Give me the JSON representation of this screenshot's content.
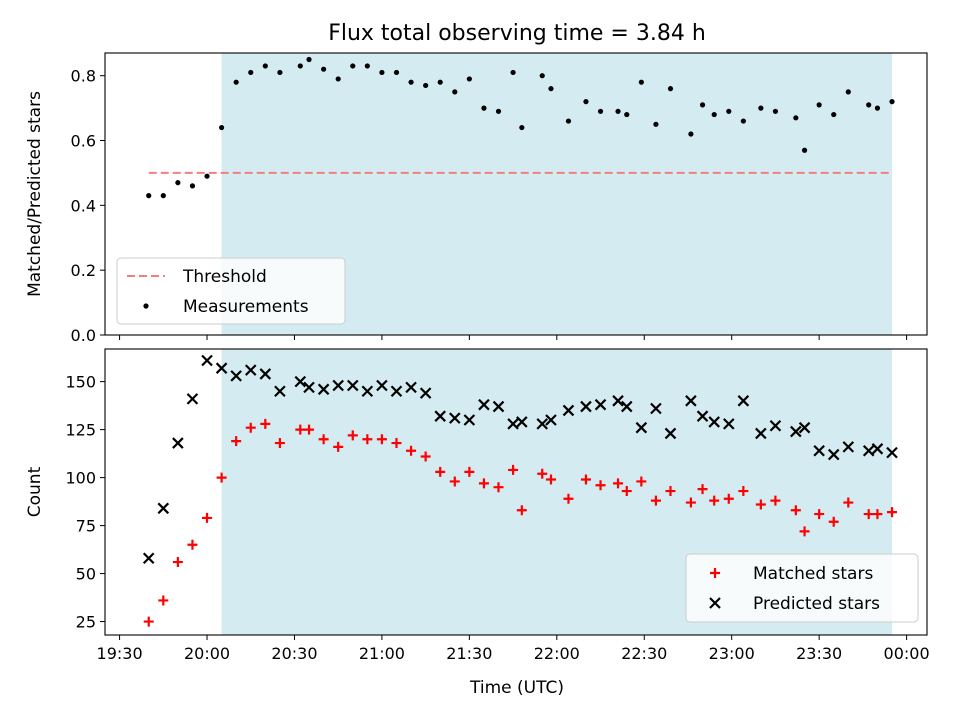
{
  "title": "Flux total observing time = 3.84 h",
  "chart_data": [
    {
      "type": "scatter",
      "ylabel": "Matched/Predicted stars",
      "ylim": [
        0,
        0.87
      ],
      "yticks": [
        0.0,
        0.2,
        0.4,
        0.6,
        0.8
      ],
      "ytick_labels": [
        "0.0",
        "0.2",
        "0.4",
        "0.6",
        "0.8"
      ],
      "xlim": [
        "19:25",
        "00:07"
      ],
      "shaded_region": {
        "from": "20:05",
        "to": "23:55",
        "color": "#d4ebf1"
      },
      "threshold": {
        "name": "Threshold",
        "value": 0.5,
        "from": "19:40",
        "to": "23:55",
        "color": "#f08080"
      },
      "series": [
        {
          "name": "Measurements",
          "color": "#000000",
          "x": [
            "19:40",
            "19:45",
            "19:50",
            "19:55",
            "20:00",
            "20:05",
            "20:10",
            "20:15",
            "20:20",
            "20:25",
            "20:32",
            "20:35",
            "20:40",
            "20:45",
            "20:50",
            "20:55",
            "21:00",
            "21:05",
            "21:10",
            "21:15",
            "21:20",
            "21:25",
            "21:30",
            "21:35",
            "21:40",
            "21:45",
            "21:48",
            "21:55",
            "21:58",
            "22:04",
            "22:10",
            "22:15",
            "22:21",
            "22:24",
            "22:29",
            "22:34",
            "22:39",
            "22:46",
            "22:50",
            "22:54",
            "22:59",
            "23:04",
            "23:10",
            "23:15",
            "23:22",
            "23:25",
            "23:30",
            "23:35",
            "23:40",
            "23:47",
            "23:50",
            "23:55"
          ],
          "y": [
            0.43,
            0.43,
            0.47,
            0.46,
            0.49,
            0.64,
            0.78,
            0.81,
            0.83,
            0.81,
            0.83,
            0.85,
            0.82,
            0.79,
            0.83,
            0.83,
            0.81,
            0.81,
            0.78,
            0.77,
            0.78,
            0.75,
            0.79,
            0.7,
            0.69,
            0.81,
            0.64,
            0.8,
            0.76,
            0.66,
            0.72,
            0.69,
            0.69,
            0.68,
            0.78,
            0.65,
            0.76,
            0.62,
            0.71,
            0.68,
            0.69,
            0.66,
            0.7,
            0.69,
            0.67,
            0.57,
            0.71,
            0.68,
            0.75,
            0.71,
            0.7,
            0.72
          ]
        }
      ],
      "legend": {
        "placement": "lower-left",
        "entries": [
          "Threshold",
          "Measurements"
        ]
      }
    },
    {
      "type": "scatter",
      "xlabel": "Time (UTC)",
      "ylabel": "Count",
      "ylim": [
        18,
        167
      ],
      "yticks": [
        25,
        50,
        75,
        100,
        125,
        150
      ],
      "ytick_labels": [
        "25",
        "50",
        "75",
        "100",
        "125",
        "150"
      ],
      "xlim": [
        "19:25",
        "00:07"
      ],
      "xticks": [
        "19:30",
        "20:00",
        "20:30",
        "21:00",
        "21:30",
        "22:00",
        "22:30",
        "23:00",
        "23:30",
        "00:00"
      ],
      "xtick_labels": [
        "19:30",
        "20:00",
        "20:30",
        "21:00",
        "21:30",
        "22:00",
        "22:30",
        "23:00",
        "23:30",
        "00:00"
      ],
      "shaded_region": {
        "from": "20:05",
        "to": "23:55",
        "color": "#d4ebf1"
      },
      "series": [
        {
          "name": "Matched stars",
          "marker": "+",
          "color": "#ff0000",
          "x": [
            "19:40",
            "19:45",
            "19:50",
            "19:55",
            "20:00",
            "20:05",
            "20:10",
            "20:15",
            "20:20",
            "20:25",
            "20:32",
            "20:35",
            "20:40",
            "20:45",
            "20:50",
            "20:55",
            "21:00",
            "21:05",
            "21:10",
            "21:15",
            "21:20",
            "21:25",
            "21:30",
            "21:35",
            "21:40",
            "21:45",
            "21:48",
            "21:55",
            "21:58",
            "22:04",
            "22:10",
            "22:15",
            "22:21",
            "22:24",
            "22:29",
            "22:34",
            "22:39",
            "22:46",
            "22:50",
            "22:54",
            "22:59",
            "23:04",
            "23:10",
            "23:15",
            "23:22",
            "23:25",
            "23:30",
            "23:35",
            "23:40",
            "23:47",
            "23:50",
            "23:55"
          ],
          "y": [
            25,
            36,
            56,
            65,
            79,
            100,
            119,
            126,
            128,
            118,
            125,
            125,
            120,
            116,
            122,
            120,
            120,
            118,
            114,
            111,
            103,
            98,
            103,
            97,
            95,
            104,
            83,
            102,
            99,
            89,
            99,
            96,
            97,
            93,
            98,
            88,
            93,
            87,
            94,
            88,
            89,
            93,
            86,
            88,
            83,
            72,
            81,
            77,
            87,
            81,
            81,
            82
          ]
        },
        {
          "name": "Predicted stars",
          "marker": "x",
          "color": "#000000",
          "x": [
            "19:40",
            "19:45",
            "19:50",
            "19:55",
            "20:00",
            "20:05",
            "20:10",
            "20:15",
            "20:20",
            "20:25",
            "20:32",
            "20:35",
            "20:40",
            "20:45",
            "20:50",
            "20:55",
            "21:00",
            "21:05",
            "21:10",
            "21:15",
            "21:20",
            "21:25",
            "21:30",
            "21:35",
            "21:40",
            "21:45",
            "21:48",
            "21:55",
            "21:58",
            "22:04",
            "22:10",
            "22:15",
            "22:21",
            "22:24",
            "22:29",
            "22:34",
            "22:39",
            "22:46",
            "22:50",
            "22:54",
            "22:59",
            "23:04",
            "23:10",
            "23:15",
            "23:22",
            "23:25",
            "23:30",
            "23:35",
            "23:40",
            "23:47",
            "23:50",
            "23:55"
          ],
          "y": [
            58,
            84,
            118,
            141,
            161,
            157,
            153,
            156,
            154,
            145,
            150,
            147,
            146,
            148,
            148,
            145,
            148,
            145,
            147,
            144,
            132,
            131,
            130,
            138,
            137,
            128,
            129,
            128,
            130,
            135,
            137,
            138,
            140,
            137,
            126,
            136,
            123,
            140,
            132,
            129,
            128,
            140,
            123,
            127,
            124,
            126,
            114,
            112,
            116,
            114,
            115,
            113
          ]
        }
      ],
      "legend": {
        "placement": "lower-right",
        "entries": [
          "Matched stars",
          "Predicted stars"
        ]
      }
    }
  ]
}
